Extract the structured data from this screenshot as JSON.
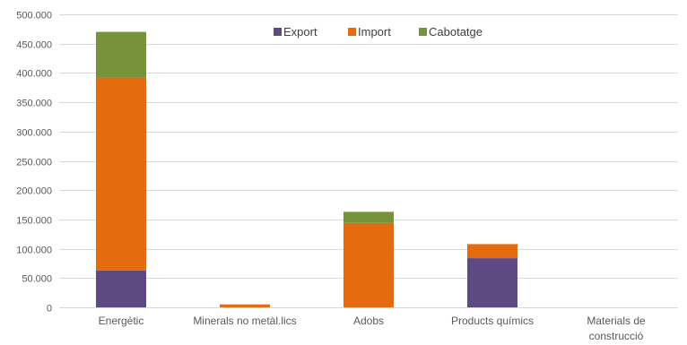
{
  "chart_data": {
    "type": "bar",
    "stacked": true,
    "title": "",
    "xlabel": "",
    "ylabel": "",
    "categories": [
      "Energètic",
      "Minerals no metàl.lics",
      "Adobs",
      "Products químics",
      "Materials de construcció"
    ],
    "category_lines": [
      [
        "Energètic"
      ],
      [
        "Minerals no metàl.lics"
      ],
      [
        "Adobs"
      ],
      [
        "Products químics"
      ],
      [
        "Materials de",
        "construcció"
      ]
    ],
    "series": [
      {
        "name": "Export",
        "color": "#5e4a82",
        "values": [
          63000,
          0,
          0,
          84000,
          0
        ]
      },
      {
        "name": "Import",
        "color": "#e46b0f",
        "values": [
          329000,
          5000,
          144000,
          24000,
          0
        ]
      },
      {
        "name": "Cabotatge",
        "color": "#76933c",
        "values": [
          78000,
          0,
          19000,
          0,
          0
        ]
      }
    ],
    "ylim": [
      0,
      500000
    ],
    "yticks": [
      0,
      50000,
      100000,
      150000,
      200000,
      250000,
      300000,
      350000,
      400000,
      450000,
      500000
    ],
    "ytick_labels": [
      "0",
      "50.000",
      "100.000",
      "150.000",
      "200.000",
      "250.000",
      "300.000",
      "350.000",
      "400.000",
      "450.000",
      "500.000"
    ],
    "grid": true,
    "legend_position": "top-center",
    "grid_color": "#d9d9d9"
  }
}
